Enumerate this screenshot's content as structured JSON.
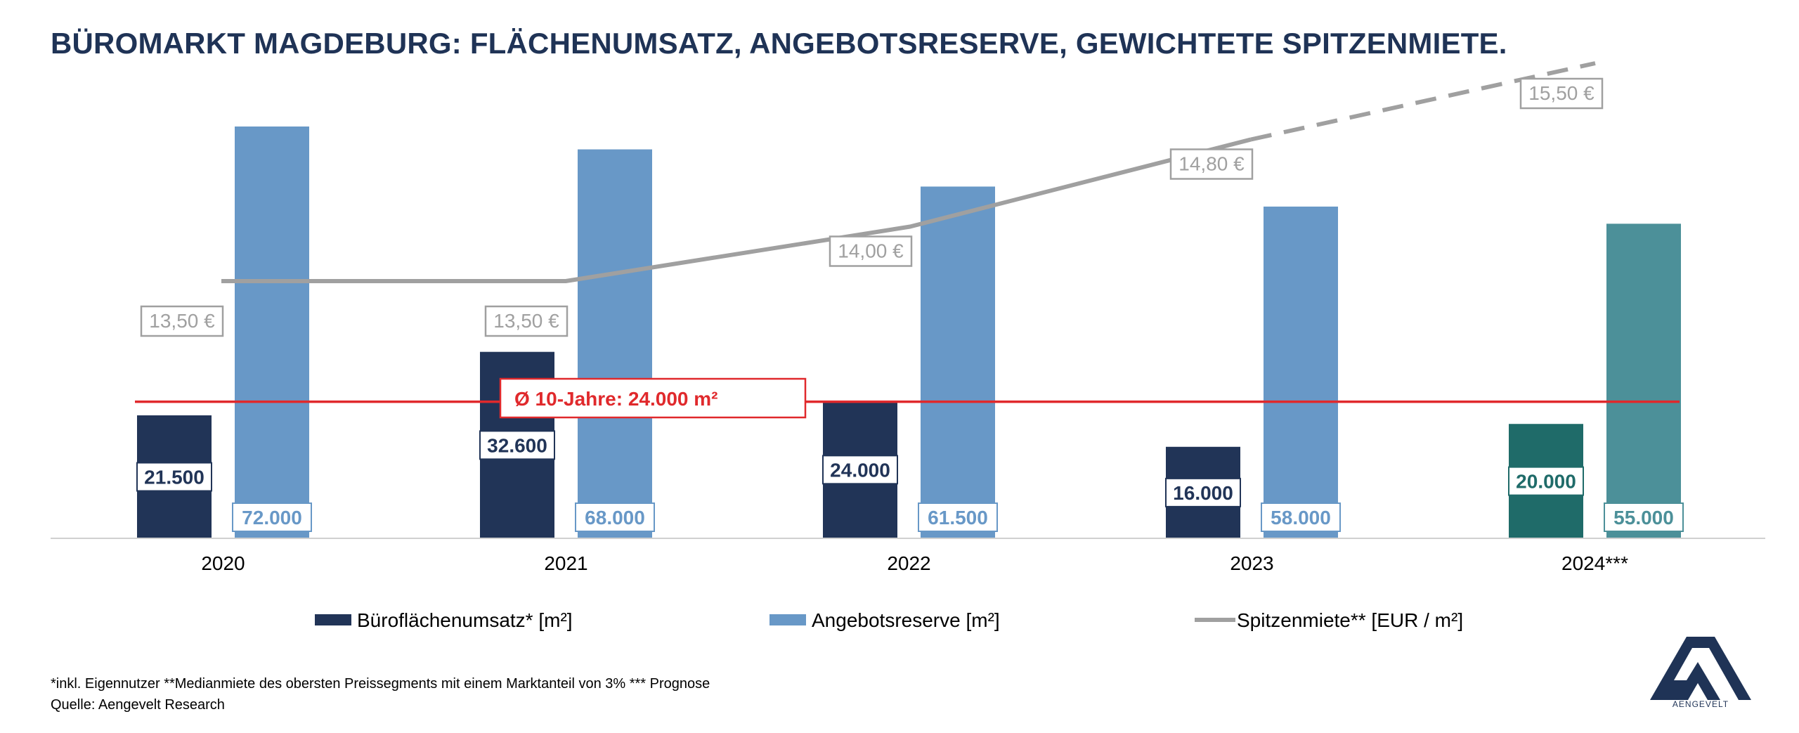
{
  "title": "BÜROMARKT MAGDEBURG: FLÄCHENUMSATZ, ANGEBOTSRESERVE, GEWICHTETE SPITZENMIETE.",
  "footnote": "*inkl. Eigennutzer **Medianmiete des obersten Preissegments mit einem Marktanteil von 3% *** Prognose",
  "source": "Quelle: Aengevelt Research",
  "logo_text": "AENGEVELT",
  "colors": {
    "umsatz": "#213457",
    "reserve": "#6898c7",
    "umsatz_forecast": "#1f6b69",
    "reserve_forecast": "#4c9099",
    "miete": "#a0a0a0",
    "average": "#e0292c",
    "title": "#1f3356"
  },
  "chart_data": {
    "type": "bar",
    "categories": [
      "2020",
      "2021",
      "2022",
      "2023",
      "2024***"
    ],
    "series": [
      {
        "name": "Büroflächenumsatz* [m²]",
        "type": "bar",
        "axis": "left",
        "values": [
          21500,
          32600,
          24000,
          16000,
          20000
        ],
        "labels": [
          "21.500",
          "32.600",
          "24.000",
          "16.000",
          "20.000"
        ]
      },
      {
        "name": "Angebotsreserve [m²]",
        "type": "bar",
        "axis": "left",
        "values": [
          72000,
          68000,
          61500,
          58000,
          55000
        ],
        "labels": [
          "72.000",
          "68.000",
          "61.500",
          "58.000",
          "55.000"
        ]
      },
      {
        "name": "Spitzenmiete** [EUR / m²]",
        "type": "line",
        "axis": "right",
        "values": [
          13.5,
          13.5,
          14.0,
          14.8,
          15.5
        ],
        "labels": [
          "13,50 €",
          "13,50 €",
          "14,00 €",
          "14,80 €",
          "15,50 €"
        ],
        "dashed_from_index": 3
      }
    ],
    "forecast_index": 4,
    "average_line": {
      "label": "Ø 10-Jahre: 24.000 m²",
      "value": 24000
    },
    "legend": {
      "placement": "bottom"
    },
    "grid": false
  }
}
